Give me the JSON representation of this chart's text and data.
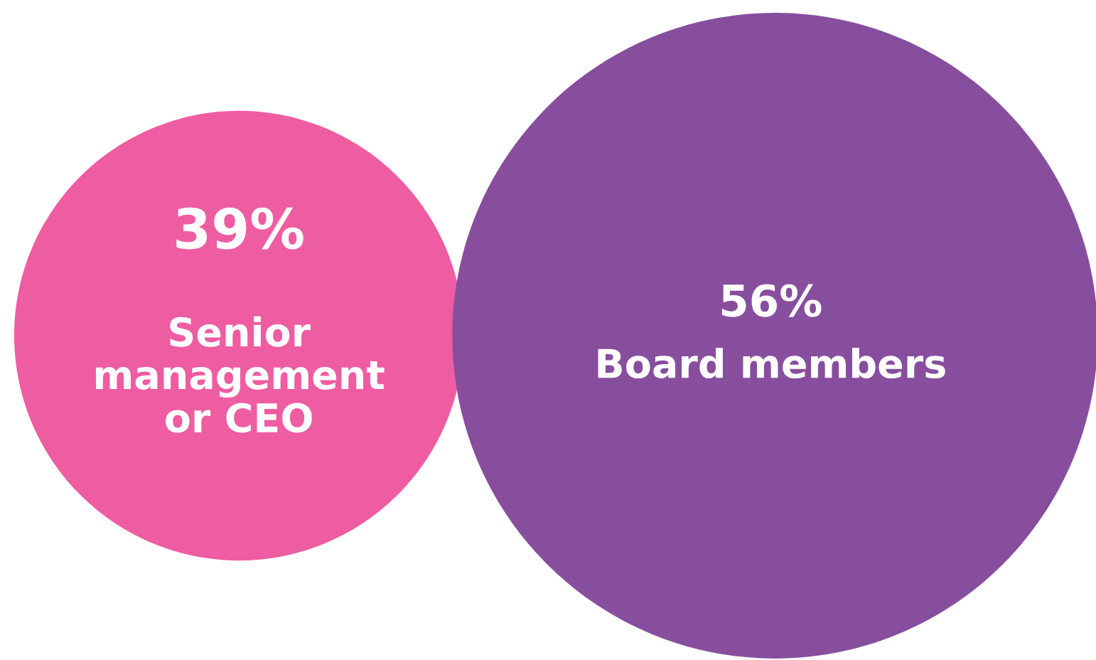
{
  "chart_data": {
    "type": "other",
    "categories": [
      "Senior\nmanagement\nor CEO",
      "Board members"
    ],
    "values": [
      39,
      56
    ],
    "value_labels": [
      "39%",
      "56%"
    ],
    "colors": [
      "#ee5ca2",
      "#874e9e"
    ]
  }
}
